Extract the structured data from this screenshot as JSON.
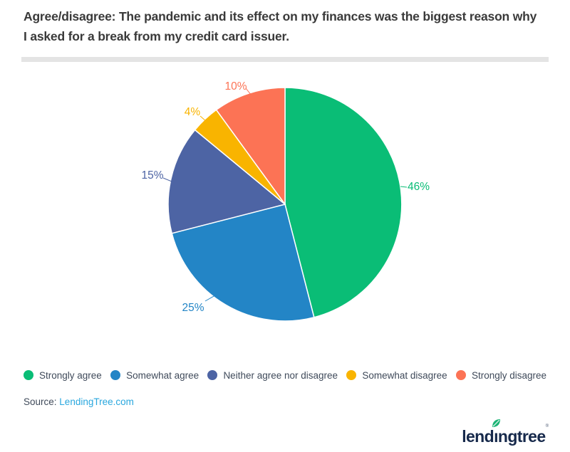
{
  "header": {
    "title": "Agree/disagree: The pandemic and its effect on my finances was the biggest reason why I asked for a break from my credit card issuer."
  },
  "chart_data": {
    "type": "pie",
    "title": "Agree/disagree: The pandemic and its effect on my finances was the biggest reason why I asked for a break from my credit card issuer.",
    "categories": [
      "Strongly agree",
      "Somewhat agree",
      "Neither agree nor disagree",
      "Somewhat disagree",
      "Strongly disagree"
    ],
    "values": [
      46,
      25,
      15,
      4,
      10
    ],
    "unit": "%",
    "data_labels": [
      "46%",
      "25%",
      "15%",
      "4%",
      "10%"
    ],
    "colors": [
      "#0abd76",
      "#2385c6",
      "#4d64a4",
      "#f9b400",
      "#fc7355"
    ],
    "start_angle": 0,
    "direction": "clockwise",
    "legend_position": "bottom"
  },
  "footer": {
    "source_label": "Source:",
    "source_link": "LendingTree.com"
  },
  "logo": {
    "text_start": "lend",
    "text_i": "ı",
    "text_end": "ngtree",
    "trademark": "®",
    "brand_navy": "#16294b",
    "leaf_green": "#1db476"
  }
}
